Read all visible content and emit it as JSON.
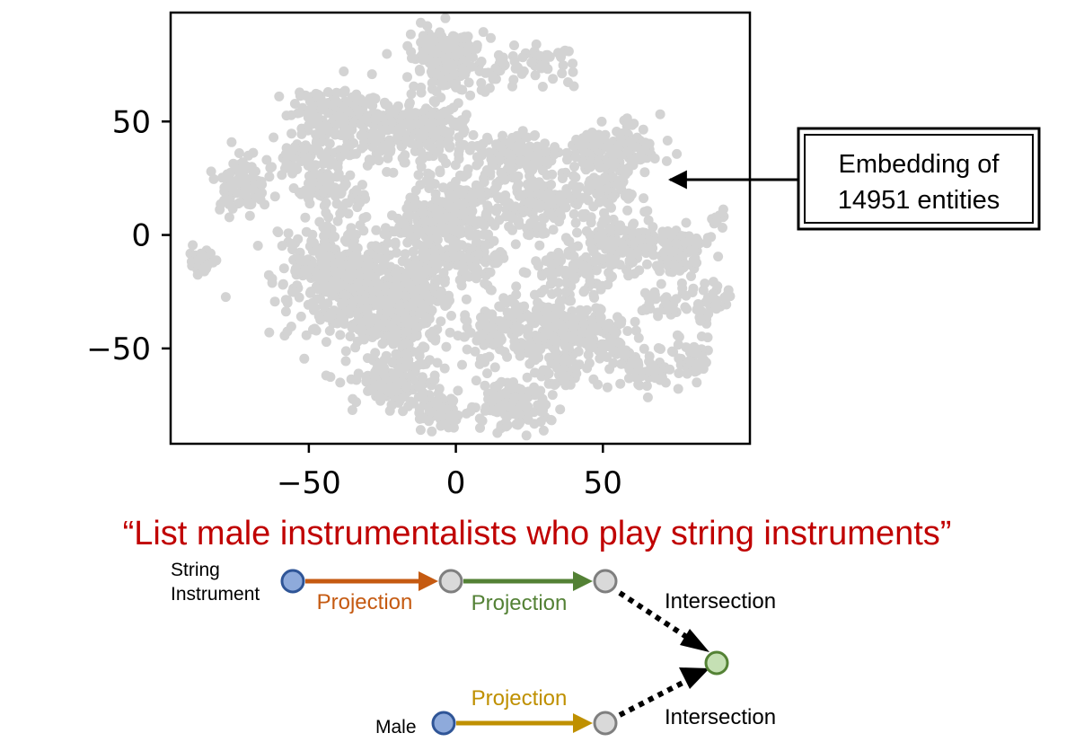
{
  "chart_data": {
    "type": "scatter",
    "title": "",
    "xlabel": "",
    "ylabel": "",
    "xlim": [
      -97,
      100
    ],
    "ylim": [
      -92,
      98
    ],
    "xticks": [
      -50,
      0,
      50
    ],
    "yticks": [
      -50,
      0,
      50
    ],
    "xtick_labels": [
      "−50",
      "0",
      "50"
    ],
    "ytick_labels": [
      "−50",
      "0",
      "50"
    ],
    "grid": false,
    "point_color": "#d3d3d3",
    "series": [
      {
        "clusters": [
          {
            "x": -3,
            "y": 78,
            "sx": 6,
            "sy": 7,
            "n": 200
          },
          {
            "x": 22,
            "y": 72,
            "sx": 8,
            "sy": 5,
            "n": 40
          },
          {
            "x": 32,
            "y": 78,
            "sx": 4,
            "sy": 3,
            "n": 25
          },
          {
            "x": -40,
            "y": 54,
            "sx": 9,
            "sy": 6,
            "n": 150
          },
          {
            "x": -22,
            "y": 45,
            "sx": 9,
            "sy": 7,
            "n": 150
          },
          {
            "x": -5,
            "y": 46,
            "sx": 6,
            "sy": 6,
            "n": 70
          },
          {
            "x": -48,
            "y": 36,
            "sx": 7,
            "sy": 5,
            "n": 80
          },
          {
            "x": -72,
            "y": 22,
            "sx": 5,
            "sy": 6,
            "n": 90
          },
          {
            "x": -86,
            "y": -12,
            "sx": 2.5,
            "sy": 2.5,
            "n": 40
          },
          {
            "x": -45,
            "y": 20,
            "sx": 6,
            "sy": 4,
            "n": 60
          },
          {
            "x": -35,
            "y": -20,
            "sx": 12,
            "sy": 13,
            "n": 500
          },
          {
            "x": -20,
            "y": -35,
            "sx": 9,
            "sy": 9,
            "n": 200
          },
          {
            "x": -10,
            "y": 5,
            "sx": 6,
            "sy": 5,
            "n": 80
          },
          {
            "x": -10,
            "y": -20,
            "sx": 5,
            "sy": 7,
            "n": 80
          },
          {
            "x": -20,
            "y": -65,
            "sx": 9,
            "sy": 6,
            "n": 150
          },
          {
            "x": 0,
            "y": 15,
            "sx": 7,
            "sy": 8,
            "n": 150
          },
          {
            "x": 5,
            "y": -10,
            "sx": 6,
            "sy": 6,
            "n": 100
          },
          {
            "x": 20,
            "y": 35,
            "sx": 7,
            "sy": 5,
            "n": 120
          },
          {
            "x": 28,
            "y": 12,
            "sx": 7,
            "sy": 7,
            "n": 150
          },
          {
            "x": 55,
            "y": 38,
            "sx": 8,
            "sy": 5,
            "n": 150
          },
          {
            "x": 50,
            "y": 20,
            "sx": 6,
            "sy": 5,
            "n": 80
          },
          {
            "x": 58,
            "y": -3,
            "sx": 9,
            "sy": 6,
            "n": 150
          },
          {
            "x": 75,
            "y": -10,
            "sx": 4,
            "sy": 5,
            "n": 50
          },
          {
            "x": 85,
            "y": -30,
            "sx": 4,
            "sy": 5,
            "n": 40
          },
          {
            "x": 72,
            "y": -30,
            "sx": 4,
            "sy": 3,
            "n": 30
          },
          {
            "x": 80,
            "y": -55,
            "sx": 3,
            "sy": 5,
            "n": 40
          },
          {
            "x": 40,
            "y": -15,
            "sx": 7,
            "sy": 5,
            "n": 80
          },
          {
            "x": 35,
            "y": -40,
            "sx": 8,
            "sy": 8,
            "n": 150
          },
          {
            "x": 15,
            "y": -40,
            "sx": 6,
            "sy": 8,
            "n": 100
          },
          {
            "x": 50,
            "y": -45,
            "sx": 7,
            "sy": 6,
            "n": 80
          },
          {
            "x": 62,
            "y": -60,
            "sx": 6,
            "sy": 5,
            "n": 60
          },
          {
            "x": 35,
            "y": -60,
            "sx": 5,
            "sy": 4,
            "n": 40
          },
          {
            "x": 20,
            "y": -75,
            "sx": 6,
            "sy": 5,
            "n": 120
          },
          {
            "x": -5,
            "y": -78,
            "sx": 4,
            "sy": 4,
            "n": 60
          },
          {
            "x": 90,
            "y": 8,
            "sx": 2,
            "sy": 2,
            "n": 15
          },
          {
            "x": 80,
            "y": -2,
            "sx": 3,
            "sy": 3,
            "n": 20
          }
        ]
      }
    ],
    "annotation": {
      "line1": "Embedding of",
      "line2": "14951 entities"
    }
  },
  "question": "“List male instrumentalists who play string instruments”",
  "query_graph": {
    "anchor_top_label_line1": "String",
    "anchor_top_label_line2": "Instrument",
    "anchor_bottom_label": "Male",
    "edge_1_label": "Projection",
    "edge_2_label": "Projection",
    "edge_3_label": "Projection",
    "intersection_top_label": "Intersection",
    "intersection_bottom_label": "Intersection",
    "colors": {
      "question": "#c00000",
      "projection_1": "#c55a11",
      "projection_2": "#538135",
      "projection_3": "#bf9000",
      "anchor_fill": "#8eaadb",
      "anchor_stroke": "#2f5597",
      "variable_fill": "#d9d9d9",
      "variable_stroke": "#7f7f7f",
      "target_fill": "#c5e0b4",
      "target_stroke": "#548235"
    }
  }
}
